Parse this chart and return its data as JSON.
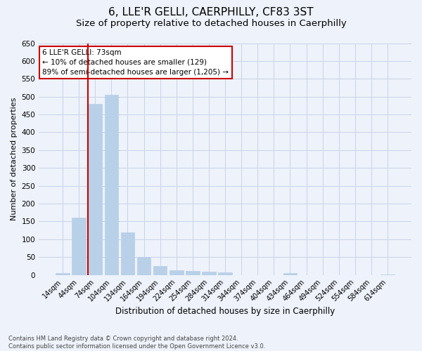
{
  "title": "6, LLE'R GELLI, CAERPHILLY, CF83 3ST",
  "subtitle": "Size of property relative to detached houses in Caerphilly",
  "xlabel": "Distribution of detached houses by size in Caerphilly",
  "ylabel": "Number of detached properties",
  "categories": [
    "14sqm",
    "44sqm",
    "74sqm",
    "104sqm",
    "134sqm",
    "164sqm",
    "194sqm",
    "224sqm",
    "254sqm",
    "284sqm",
    "314sqm",
    "344sqm",
    "374sqm",
    "404sqm",
    "434sqm",
    "464sqm",
    "494sqm",
    "524sqm",
    "554sqm",
    "584sqm",
    "614sqm"
  ],
  "values": [
    5,
    160,
    480,
    505,
    120,
    50,
    25,
    13,
    12,
    10,
    8,
    0,
    0,
    0,
    6,
    0,
    0,
    0,
    0,
    0,
    2
  ],
  "bar_color": "#b8d0e8",
  "bar_edge_color": "#b8d0e8",
  "grid_color": "#c8d4e8",
  "background_color": "#eef2fa",
  "vline_color": "#cc0000",
  "annotation_text": "6 LLE'R GELLI: 73sqm\n← 10% of detached houses are smaller (129)\n89% of semi-detached houses are larger (1,205) →",
  "annotation_box_color": "#ffffff",
  "annotation_box_edge": "#cc0000",
  "ylim": [
    0,
    650
  ],
  "yticks": [
    0,
    50,
    100,
    150,
    200,
    250,
    300,
    350,
    400,
    450,
    500,
    550,
    600,
    650
  ],
  "footer_line1": "Contains HM Land Registry data © Crown copyright and database right 2024.",
  "footer_line2": "Contains public sector information licensed under the Open Government Licence v3.0.",
  "title_fontsize": 11,
  "subtitle_fontsize": 9.5
}
